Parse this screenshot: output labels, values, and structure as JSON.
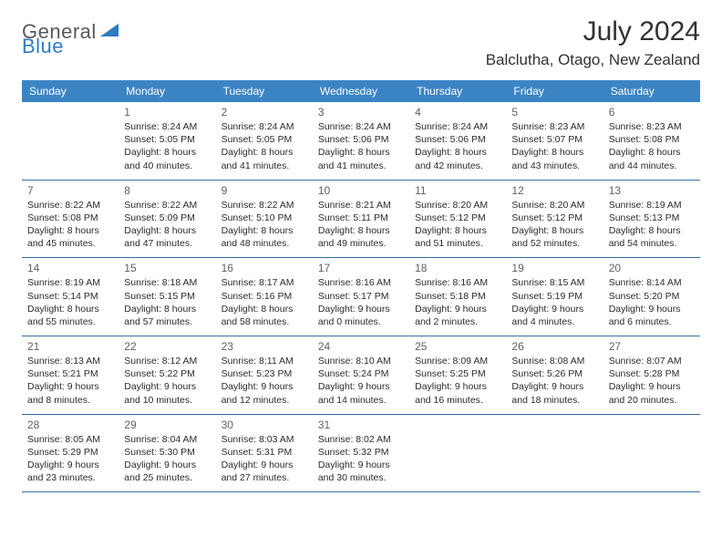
{
  "logo": {
    "general": "General",
    "blue": "Blue"
  },
  "header": {
    "month_title": "July 2024",
    "location": "Balclutha, Otago, New Zealand"
  },
  "style": {
    "header_bg": "#3b84c4",
    "header_text": "#ffffff",
    "week_border": "#3b6ea0",
    "body_text": "#2b2b2b",
    "daynum_text": "#606060",
    "page_bg": "#ffffff",
    "logo_general_color": "#555a60",
    "logo_blue_color": "#2f7bbf",
    "title_color": "#323232",
    "header_fontsize": 12,
    "body_fontsize": 10.5,
    "title_fontsize": 30,
    "location_fontsize": 17
  },
  "weekdays": [
    "Sunday",
    "Monday",
    "Tuesday",
    "Wednesday",
    "Thursday",
    "Friday",
    "Saturday"
  ],
  "weeks": [
    [
      null,
      {
        "n": "1",
        "sr": "8:24 AM",
        "ss": "5:05 PM",
        "dl": "8 hours and 40 minutes."
      },
      {
        "n": "2",
        "sr": "8:24 AM",
        "ss": "5:05 PM",
        "dl": "8 hours and 41 minutes."
      },
      {
        "n": "3",
        "sr": "8:24 AM",
        "ss": "5:06 PM",
        "dl": "8 hours and 41 minutes."
      },
      {
        "n": "4",
        "sr": "8:24 AM",
        "ss": "5:06 PM",
        "dl": "8 hours and 42 minutes."
      },
      {
        "n": "5",
        "sr": "8:23 AM",
        "ss": "5:07 PM",
        "dl": "8 hours and 43 minutes."
      },
      {
        "n": "6",
        "sr": "8:23 AM",
        "ss": "5:08 PM",
        "dl": "8 hours and 44 minutes."
      }
    ],
    [
      {
        "n": "7",
        "sr": "8:22 AM",
        "ss": "5:08 PM",
        "dl": "8 hours and 45 minutes."
      },
      {
        "n": "8",
        "sr": "8:22 AM",
        "ss": "5:09 PM",
        "dl": "8 hours and 47 minutes."
      },
      {
        "n": "9",
        "sr": "8:22 AM",
        "ss": "5:10 PM",
        "dl": "8 hours and 48 minutes."
      },
      {
        "n": "10",
        "sr": "8:21 AM",
        "ss": "5:11 PM",
        "dl": "8 hours and 49 minutes."
      },
      {
        "n": "11",
        "sr": "8:20 AM",
        "ss": "5:12 PM",
        "dl": "8 hours and 51 minutes."
      },
      {
        "n": "12",
        "sr": "8:20 AM",
        "ss": "5:12 PM",
        "dl": "8 hours and 52 minutes."
      },
      {
        "n": "13",
        "sr": "8:19 AM",
        "ss": "5:13 PM",
        "dl": "8 hours and 54 minutes."
      }
    ],
    [
      {
        "n": "14",
        "sr": "8:19 AM",
        "ss": "5:14 PM",
        "dl": "8 hours and 55 minutes."
      },
      {
        "n": "15",
        "sr": "8:18 AM",
        "ss": "5:15 PM",
        "dl": "8 hours and 57 minutes."
      },
      {
        "n": "16",
        "sr": "8:17 AM",
        "ss": "5:16 PM",
        "dl": "8 hours and 58 minutes."
      },
      {
        "n": "17",
        "sr": "8:16 AM",
        "ss": "5:17 PM",
        "dl": "9 hours and 0 minutes."
      },
      {
        "n": "18",
        "sr": "8:16 AM",
        "ss": "5:18 PM",
        "dl": "9 hours and 2 minutes."
      },
      {
        "n": "19",
        "sr": "8:15 AM",
        "ss": "5:19 PM",
        "dl": "9 hours and 4 minutes."
      },
      {
        "n": "20",
        "sr": "8:14 AM",
        "ss": "5:20 PM",
        "dl": "9 hours and 6 minutes."
      }
    ],
    [
      {
        "n": "21",
        "sr": "8:13 AM",
        "ss": "5:21 PM",
        "dl": "9 hours and 8 minutes."
      },
      {
        "n": "22",
        "sr": "8:12 AM",
        "ss": "5:22 PM",
        "dl": "9 hours and 10 minutes."
      },
      {
        "n": "23",
        "sr": "8:11 AM",
        "ss": "5:23 PM",
        "dl": "9 hours and 12 minutes."
      },
      {
        "n": "24",
        "sr": "8:10 AM",
        "ss": "5:24 PM",
        "dl": "9 hours and 14 minutes."
      },
      {
        "n": "25",
        "sr": "8:09 AM",
        "ss": "5:25 PM",
        "dl": "9 hours and 16 minutes."
      },
      {
        "n": "26",
        "sr": "8:08 AM",
        "ss": "5:26 PM",
        "dl": "9 hours and 18 minutes."
      },
      {
        "n": "27",
        "sr": "8:07 AM",
        "ss": "5:28 PM",
        "dl": "9 hours and 20 minutes."
      }
    ],
    [
      {
        "n": "28",
        "sr": "8:05 AM",
        "ss": "5:29 PM",
        "dl": "9 hours and 23 minutes."
      },
      {
        "n": "29",
        "sr": "8:04 AM",
        "ss": "5:30 PM",
        "dl": "9 hours and 25 minutes."
      },
      {
        "n": "30",
        "sr": "8:03 AM",
        "ss": "5:31 PM",
        "dl": "9 hours and 27 minutes."
      },
      {
        "n": "31",
        "sr": "8:02 AM",
        "ss": "5:32 PM",
        "dl": "9 hours and 30 minutes."
      },
      null,
      null,
      null
    ]
  ]
}
